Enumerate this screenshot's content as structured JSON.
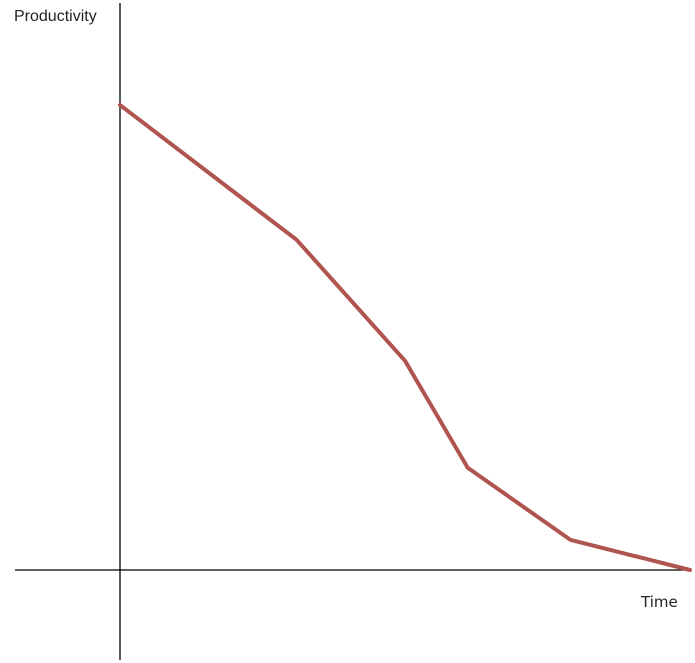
{
  "chart_data": {
    "type": "line",
    "title": "",
    "xlabel": "Time",
    "ylabel": "Productivity",
    "grid": false,
    "legend": "none",
    "xlim": [
      0,
      10
    ],
    "ylim": [
      0,
      10
    ],
    "series": [
      {
        "color": "#b0544f",
        "x": [
          0,
          3.1,
          5.0,
          6.1,
          7.9,
          10
        ],
        "y": [
          10,
          7.1,
          4.5,
          2.2,
          0.65,
          0
        ]
      }
    ]
  }
}
